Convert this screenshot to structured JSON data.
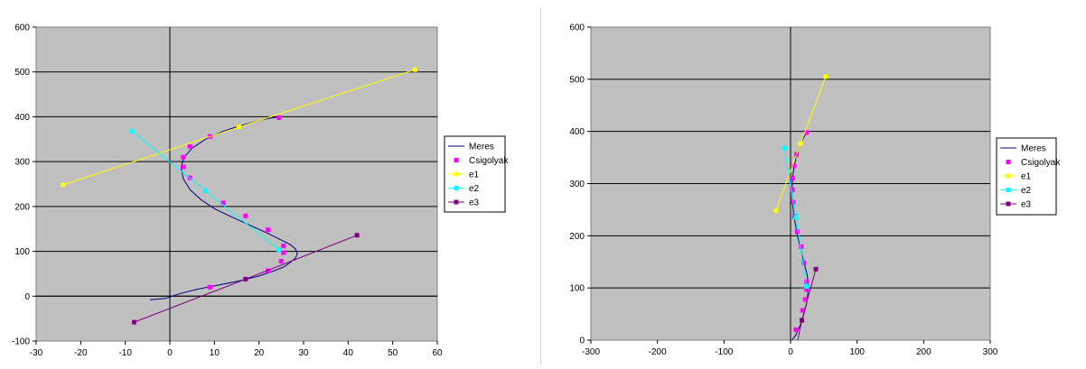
{
  "chart_data": [
    {
      "type": "scatter",
      "title": "",
      "xlabel": "",
      "ylabel": "",
      "xlim": [
        -30,
        60
      ],
      "ylim": [
        -100,
        600
      ],
      "xticks": [
        -30,
        -20,
        -10,
        0,
        10,
        20,
        30,
        40,
        50,
        60
      ],
      "yticks": [
        -100,
        0,
        100,
        200,
        300,
        400,
        500,
        600
      ],
      "legend_position": "right",
      "grid": true,
      "series": [
        {
          "name": "Meres",
          "kind": "line",
          "color": "#000080",
          "points": [
            [
              -4.5,
              -8
            ],
            [
              -1,
              -5
            ],
            [
              2,
              5
            ],
            [
              6,
              15
            ],
            [
              11,
              25
            ],
            [
              16,
              35
            ],
            [
              20,
              45
            ],
            [
              23,
              55
            ],
            [
              25.5,
              65
            ],
            [
              27,
              75
            ],
            [
              28.2,
              85
            ],
            [
              28.6,
              95
            ],
            [
              28.2,
              105
            ],
            [
              27,
              115
            ],
            [
              25,
              125
            ],
            [
              22,
              140
            ],
            [
              18,
              158
            ],
            [
              14,
              176
            ],
            [
              10,
              195
            ],
            [
              7,
              215
            ],
            [
              4.5,
              238
            ],
            [
              3,
              262
            ],
            [
              2.5,
              288
            ],
            [
              3.2,
              310
            ],
            [
              5,
              330
            ],
            [
              8,
              350
            ],
            [
              12,
              368
            ],
            [
              16.5,
              382
            ],
            [
              21,
              394
            ],
            [
              24.5,
              400
            ]
          ]
        },
        {
          "name": "Csigolyak",
          "kind": "markers",
          "color": "#ff00ff",
          "points": [
            [
              9,
              20
            ],
            [
              22,
              57
            ],
            [
              25,
              78
            ],
            [
              25.5,
              97
            ],
            [
              25.5,
              112
            ],
            [
              22,
              148
            ],
            [
              17,
              179
            ],
            [
              12,
              208
            ],
            [
              8,
              235
            ],
            [
              4.5,
              264
            ],
            [
              3,
              288
            ],
            [
              3,
              310
            ],
            [
              4.5,
              334
            ],
            [
              9,
              356
            ],
            [
              24.5,
              398
            ]
          ]
        },
        {
          "name": "e1",
          "kind": "line-markers",
          "color": "#ffff00",
          "points": [
            [
              -24,
              248
            ],
            [
              15.5,
              377
            ],
            [
              55,
              505
            ]
          ]
        },
        {
          "name": "e2",
          "kind": "line-markers",
          "color": "#00ffff",
          "points": [
            [
              -8.5,
              368
            ],
            [
              8,
              235
            ],
            [
              24.5,
              103
            ]
          ]
        },
        {
          "name": "e3",
          "kind": "line-markers",
          "color": "#800080",
          "points": [
            [
              -8,
              -58
            ],
            [
              17,
              38
            ],
            [
              42,
              136
            ]
          ]
        }
      ]
    },
    {
      "type": "scatter",
      "title": "",
      "xlabel": "",
      "ylabel": "",
      "xlim": [
        -300,
        300
      ],
      "ylim": [
        0,
        600
      ],
      "xticks": [
        -300,
        -200,
        -100,
        0,
        100,
        200,
        300
      ],
      "yticks": [
        0,
        100,
        200,
        300,
        400,
        500,
        600
      ],
      "legend_position": "right",
      "grid": true,
      "series": [
        {
          "name": "Meres",
          "kind": "line",
          "color": "#000080",
          "points": [
            [
              2,
              0
            ],
            [
              8,
              10
            ],
            [
              15,
              30
            ],
            [
              20,
              50
            ],
            [
              24,
              70
            ],
            [
              26,
              90
            ],
            [
              27,
              105
            ],
            [
              25,
              125
            ],
            [
              20,
              150
            ],
            [
              14,
              180
            ],
            [
              9,
              210
            ],
            [
              5,
              238
            ],
            [
              3,
              262
            ],
            [
              2,
              288
            ],
            [
              3,
              310
            ],
            [
              5,
              330
            ],
            [
              9,
              355
            ],
            [
              16,
              380
            ],
            [
              25,
              400
            ]
          ]
        },
        {
          "name": "Csigolyak",
          "kind": "markers",
          "color": "#ff00ff",
          "points": [
            [
              8,
              20
            ],
            [
              18,
              57
            ],
            [
              22,
              78
            ],
            [
              24,
              97
            ],
            [
              24,
              112
            ],
            [
              20,
              148
            ],
            [
              16,
              179
            ],
            [
              10,
              208
            ],
            [
              6,
              237
            ],
            [
              4,
              264
            ],
            [
              3,
              288
            ],
            [
              3,
              310
            ],
            [
              5,
              334
            ],
            [
              9,
              356
            ],
            [
              24,
              398
            ]
          ]
        },
        {
          "name": "e1",
          "kind": "line-markers",
          "color": "#ffff00",
          "points": [
            [
              -22,
              248
            ],
            [
              15,
              377
            ],
            [
              53,
              505
            ]
          ]
        },
        {
          "name": "e2",
          "kind": "line-markers",
          "color": "#00ffff",
          "points": [
            [
              -9,
              368
            ],
            [
              8,
              235
            ],
            [
              24,
              103
            ]
          ]
        },
        {
          "name": "e3",
          "kind": "line-markers",
          "color": "#800080",
          "points": [
            [
              10,
              -5
            ],
            [
              17,
              38
            ],
            [
              38,
              136
            ]
          ]
        }
      ]
    }
  ]
}
